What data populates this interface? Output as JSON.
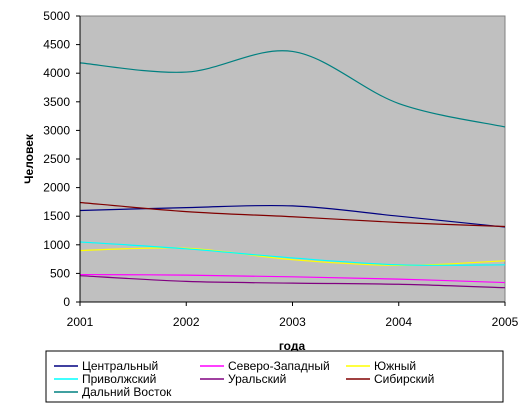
{
  "chart_data": {
    "type": "line",
    "title": "",
    "xlabel": "года",
    "ylabel": "Человек",
    "x": [
      2001,
      2002,
      2003,
      2004,
      2005
    ],
    "xlim": [
      2001,
      2005
    ],
    "ylim": [
      0,
      5000
    ],
    "yticks": [
      0,
      500,
      1000,
      1500,
      2000,
      2500,
      3000,
      3500,
      4000,
      4500,
      5000
    ],
    "grid": false,
    "plot_background": "#c0c0c0",
    "legend_position": "bottom",
    "series": [
      {
        "name": "Центральный",
        "color": "#000080",
        "values": [
          1600,
          1650,
          1680,
          1500,
          1310
        ]
      },
      {
        "name": "Северо-Западный",
        "color": "#ff00ff",
        "values": [
          480,
          470,
          440,
          400,
          340
        ]
      },
      {
        "name": "Южный",
        "color": "#ffff00",
        "values": [
          900,
          940,
          740,
          640,
          720
        ]
      },
      {
        "name": "Приволжский",
        "color": "#00ffff",
        "values": [
          1050,
          930,
          770,
          650,
          650
        ]
      },
      {
        "name": "Уральский",
        "color": "#800080",
        "values": [
          460,
          360,
          330,
          310,
          250
        ]
      },
      {
        "name": "Сибирский",
        "color": "#800000",
        "values": [
          1740,
          1580,
          1490,
          1390,
          1320
        ]
      },
      {
        "name": "Дальний Восток",
        "color": "#008080",
        "values": [
          4180,
          4020,
          4380,
          3470,
          3060
        ]
      }
    ]
  }
}
